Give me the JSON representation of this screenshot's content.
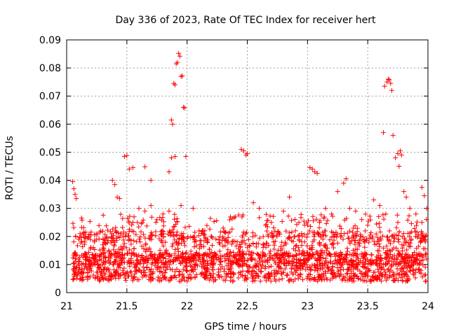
{
  "chart_data": {
    "type": "scatter",
    "title": "Day 336 of 2023, Rate Of TEC Index for receiver hert",
    "xlabel": "GPS time / hours",
    "ylabel": "ROTI / TECUs",
    "xlim": [
      21,
      24
    ],
    "ylim": [
      0,
      0.09
    ],
    "xticks": [
      "21",
      "21.5",
      "22",
      "22.5",
      "23",
      "23.5",
      "24"
    ],
    "yticks": [
      "0",
      "0.01",
      "0.02",
      "0.03",
      "0.04",
      "0.05",
      "0.06",
      "0.07",
      "0.08",
      "0.09"
    ],
    "grid": true,
    "marker": "plus",
    "color": "#ff0000",
    "series": [
      {
        "points": [
          [
            21.05,
            0.0395
          ],
          [
            21.06,
            0.037
          ],
          [
            21.07,
            0.035
          ],
          [
            21.08,
            0.0335
          ],
          [
            21.38,
            0.04
          ],
          [
            21.4,
            0.0385
          ],
          [
            21.42,
            0.034
          ],
          [
            21.44,
            0.0335
          ],
          [
            21.48,
            0.0485
          ],
          [
            21.5,
            0.0488
          ],
          [
            21.52,
            0.044
          ],
          [
            21.55,
            0.0445
          ],
          [
            21.65,
            0.0448
          ],
          [
            21.7,
            0.04
          ],
          [
            21.85,
            0.043
          ],
          [
            21.87,
            0.0615
          ],
          [
            21.88,
            0.06
          ],
          [
            21.89,
            0.0745
          ],
          [
            21.9,
            0.074
          ],
          [
            21.91,
            0.0815
          ],
          [
            21.92,
            0.082
          ],
          [
            21.93,
            0.0852
          ],
          [
            21.94,
            0.0842
          ],
          [
            21.95,
            0.077
          ],
          [
            21.96,
            0.0772
          ],
          [
            21.97,
            0.066
          ],
          [
            21.98,
            0.0658
          ],
          [
            21.99,
            0.0485
          ],
          [
            21.87,
            0.048
          ],
          [
            21.9,
            0.0485
          ],
          [
            22.45,
            0.051
          ],
          [
            22.47,
            0.0505
          ],
          [
            22.49,
            0.049
          ],
          [
            22.5,
            0.0495
          ],
          [
            23.02,
            0.0445
          ],
          [
            23.04,
            0.044
          ],
          [
            23.06,
            0.043
          ],
          [
            23.08,
            0.0425
          ],
          [
            23.3,
            0.039
          ],
          [
            23.32,
            0.0405
          ],
          [
            23.63,
            0.057
          ],
          [
            23.64,
            0.0735
          ],
          [
            23.66,
            0.075
          ],
          [
            23.67,
            0.076
          ],
          [
            23.68,
            0.0758
          ],
          [
            23.69,
            0.0745
          ],
          [
            23.7,
            0.072
          ],
          [
            23.71,
            0.056
          ],
          [
            23.73,
            0.048
          ],
          [
            23.75,
            0.0495
          ],
          [
            23.77,
            0.0505
          ],
          [
            23.78,
            0.049
          ],
          [
            23.76,
            0.045
          ],
          [
            23.8,
            0.036
          ],
          [
            23.82,
            0.034
          ],
          [
            23.95,
            0.0375
          ],
          [
            23.97,
            0.0345
          ],
          [
            23.99,
            0.03
          ],
          [
            21.1,
            0.019
          ],
          [
            21.15,
            0.018
          ],
          [
            21.2,
            0.0205
          ],
          [
            21.25,
            0.019
          ],
          [
            21.3,
            0.017
          ],
          [
            21.35,
            0.015
          ],
          [
            21.45,
            0.021
          ],
          [
            21.55,
            0.025
          ],
          [
            21.6,
            0.03
          ],
          [
            21.65,
            0.029
          ],
          [
            21.7,
            0.031
          ],
          [
            21.75,
            0.026
          ],
          [
            21.8,
            0.028
          ],
          [
            21.85,
            0.029
          ],
          [
            21.95,
            0.031
          ],
          [
            22.05,
            0.03
          ],
          [
            22.1,
            0.022
          ],
          [
            22.2,
            0.02
          ],
          [
            22.3,
            0.023
          ],
          [
            22.4,
            0.027
          ],
          [
            22.55,
            0.032
          ],
          [
            22.6,
            0.03
          ],
          [
            22.7,
            0.025
          ],
          [
            22.8,
            0.029
          ],
          [
            22.85,
            0.034
          ],
          [
            22.9,
            0.022
          ],
          [
            23.0,
            0.024
          ],
          [
            23.1,
            0.025
          ],
          [
            23.15,
            0.03
          ],
          [
            23.2,
            0.028
          ],
          [
            23.25,
            0.036
          ],
          [
            23.35,
            0.03
          ],
          [
            23.4,
            0.029
          ],
          [
            23.45,
            0.026
          ],
          [
            23.5,
            0.024
          ],
          [
            23.55,
            0.033
          ],
          [
            23.6,
            0.031
          ],
          [
            23.65,
            0.028
          ],
          [
            23.7,
            0.02
          ],
          [
            23.75,
            0.025
          ],
          [
            23.85,
            0.03
          ],
          [
            23.9,
            0.028
          ],
          [
            23.95,
            0.025
          ],
          [
            23.98,
            0.02
          ]
        ]
      }
    ]
  }
}
